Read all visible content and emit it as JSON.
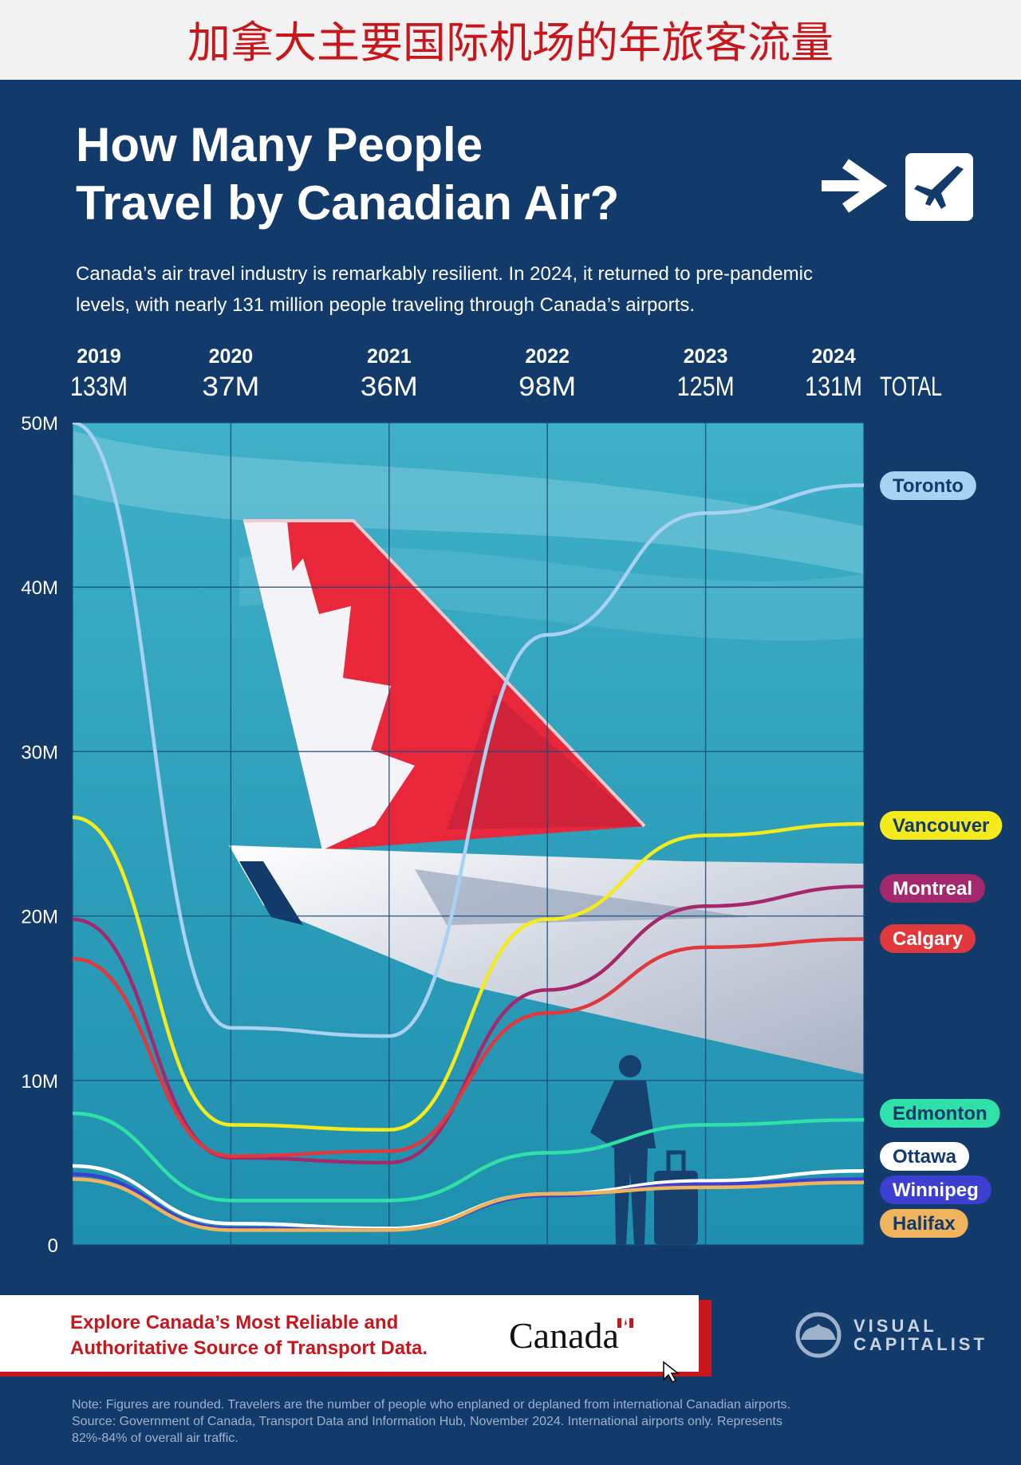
{
  "banner": {
    "title": "加拿大主要国际机场的年旅客流量"
  },
  "chart_data": {
    "type": "line",
    "title": [
      "How Many People",
      "Travel by Canadian Air?"
    ],
    "subtitle": [
      "Canada’s air travel industry is remarkably resilient. In 2024, it returned to pre-pandemic",
      "levels, with nearly 131 million people traveling through Canada’s airports."
    ],
    "x": [
      2019,
      2020,
      2021,
      2022,
      2023,
      2024
    ],
    "xlim": [
      2019,
      2024
    ],
    "totals": {
      "label": "TOTAL",
      "values": [
        133,
        37,
        36,
        98,
        125,
        131
      ],
      "value_labels": [
        "133M",
        "37M",
        "36M",
        "98M",
        "125M",
        "131M"
      ]
    },
    "ylim": [
      0,
      50
    ],
    "yticks": [
      {
        "value": 0,
        "label": "0"
      },
      {
        "value": 10,
        "label": "10M"
      },
      {
        "value": 20,
        "label": "20M"
      },
      {
        "value": 30,
        "label": "30M"
      },
      {
        "value": 40,
        "label": "40M"
      },
      {
        "value": 50,
        "label": "50M"
      }
    ],
    "grid": true,
    "series": [
      {
        "name": "Toronto",
        "color": "#a9d2f2",
        "values": [
          50,
          13.2,
          12.7,
          37.1,
          44.5,
          46.2
        ]
      },
      {
        "name": "Vancouver",
        "color": "#f4ea1c",
        "values": [
          26.0,
          7.3,
          7.0,
          19.8,
          24.9,
          25.6
        ]
      },
      {
        "name": "Montreal",
        "color": "#a3296c",
        "values": [
          19.8,
          5.3,
          5.0,
          15.5,
          20.6,
          21.8
        ]
      },
      {
        "name": "Calgary",
        "color": "#e0383d",
        "values": [
          17.4,
          5.4,
          5.7,
          14.1,
          18.1,
          18.6
        ]
      },
      {
        "name": "Edmonton",
        "color": "#2fe0a8",
        "values": [
          8.0,
          2.7,
          2.7,
          5.6,
          7.3,
          7.6
        ]
      },
      {
        "name": "Ottawa",
        "color": "#ffffff",
        "values": [
          4.8,
          1.3,
          1.0,
          3.1,
          3.9,
          4.5
        ]
      },
      {
        "name": "Winnipeg",
        "color": "#3d3fd0",
        "values": [
          4.3,
          1.0,
          0.9,
          3.0,
          3.7,
          4.0
        ]
      },
      {
        "name": "Halifax",
        "color": "#f0b45c",
        "values": [
          4.0,
          0.9,
          0.9,
          3.1,
          3.5,
          3.8
        ]
      }
    ]
  },
  "footer": {
    "cta": [
      "Explore Canada’s Most Reliable and",
      "Authoritative Source of Transport Data."
    ],
    "wordmark": "Canada",
    "logo": [
      "VISUAL",
      "CAPITALIST"
    ],
    "note": [
      "Note: Figures are rounded. Travelers are the number of people who enplaned or deplaned from international Canadian airports.",
      "Source: Government of Canada, Transport Data and Information Hub, November 2024. International airports only. Represents",
      "82%-84% of overall air traffic."
    ]
  }
}
